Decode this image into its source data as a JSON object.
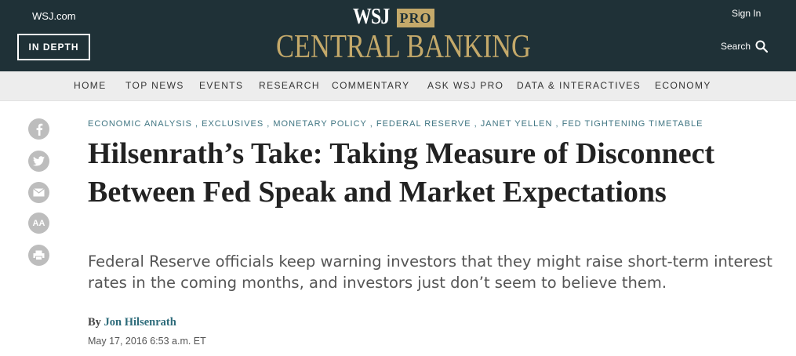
{
  "header": {
    "wsj_link": "WSJ.com",
    "in_depth": "IN DEPTH",
    "logo_wsj": "WSJ",
    "logo_pro": "PRO",
    "logo_section": "CENTRAL BANKING",
    "sign_in": "Sign In",
    "search": "Search",
    "background_color": "#1f3137",
    "accent_color": "#c4a96a"
  },
  "nav": {
    "items": [
      "HOME",
      "TOP NEWS",
      "EVENTS",
      "RESEARCH",
      "COMMENTARY",
      "ASK WSJ PRO",
      "DATA & INTERACTIVES",
      "ECONOMY"
    ]
  },
  "social": {
    "icons": [
      "facebook-icon",
      "twitter-icon",
      "email-icon",
      "text-size-icon",
      "print-icon"
    ],
    "text_size_label": "AA"
  },
  "article": {
    "categories": "ECONOMIC ANALYSIS , EXCLUSIVES , MONETARY POLICY , FEDERAL RESERVE , JANET YELLEN , FED TIGHTENING TIMETABLE",
    "headline": "Hilsenrath’s Take: Taking Measure of Disconnect Between Fed Speak and Market Expectations",
    "dek": "Federal Reserve officials keep warning investors that they might raise short-term interest rates in the coming months, and investors just don’t seem to believe them.",
    "byline_prefix": "By",
    "author": "Jon Hilsenrath",
    "timestamp": "May 17, 2016 6:53 a.m. ET"
  }
}
